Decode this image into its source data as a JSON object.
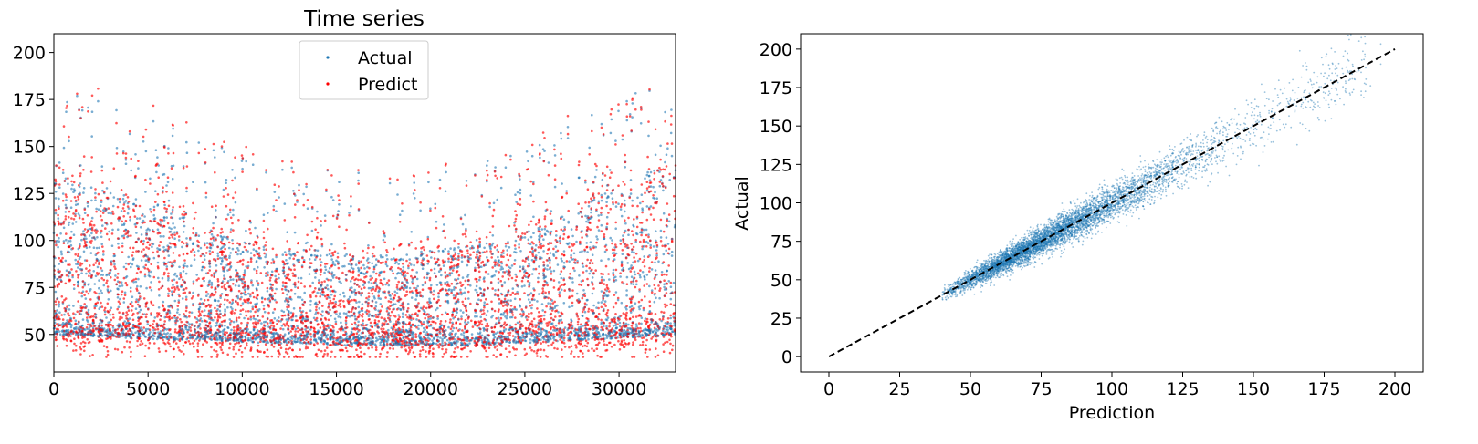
{
  "chart_data": [
    {
      "type": "scatter",
      "title": "Time series",
      "xlabel": "",
      "ylabel": "",
      "xlim": [
        0,
        33000
      ],
      "ylim": [
        30,
        210
      ],
      "xticks": [
        0,
        5000,
        10000,
        15000,
        20000,
        25000,
        30000
      ],
      "yticks": [
        50,
        75,
        100,
        125,
        150,
        175,
        200
      ],
      "legend_position": "top-center",
      "series": [
        {
          "name": "Actual",
          "color": "#1f77b4"
        },
        {
          "name": "Predict",
          "color": "#ff0000"
        }
      ],
      "baseline_profile": {
        "x": [
          0,
          2000,
          4000,
          6000,
          8000,
          10000,
          12000,
          14000,
          16000,
          18000,
          20000,
          22000,
          24000,
          26000,
          28000,
          30000,
          32000,
          33000
        ],
        "y_low": [
          50,
          49,
          48,
          47,
          47,
          46,
          45,
          45,
          44,
          44,
          44,
          44,
          45,
          46,
          47,
          48,
          49,
          50
        ],
        "y_upper": [
          135,
          130,
          125,
          118,
          108,
          100,
          95,
          95,
          92,
          92,
          95,
          97,
          100,
          110,
          120,
          130,
          140,
          145
        ]
      }
    },
    {
      "type": "scatter",
      "title": "",
      "xlabel": "Prediction",
      "ylabel": "Actual",
      "xlim": [
        -10,
        210
      ],
      "ylim": [
        -10,
        210
      ],
      "xticks": [
        0,
        25,
        50,
        75,
        100,
        125,
        150,
        175,
        200
      ],
      "yticks": [
        0,
        25,
        50,
        75,
        100,
        125,
        150,
        175,
        200
      ],
      "series": [
        {
          "name": "",
          "color": "#1f77b4",
          "x_range": [
            38,
            200
          ],
          "relation": "y ≈ x"
        }
      ],
      "reference_line": {
        "x": [
          0,
          200
        ],
        "y": [
          0,
          200
        ],
        "style": "dashed",
        "color": "#000000"
      }
    }
  ]
}
